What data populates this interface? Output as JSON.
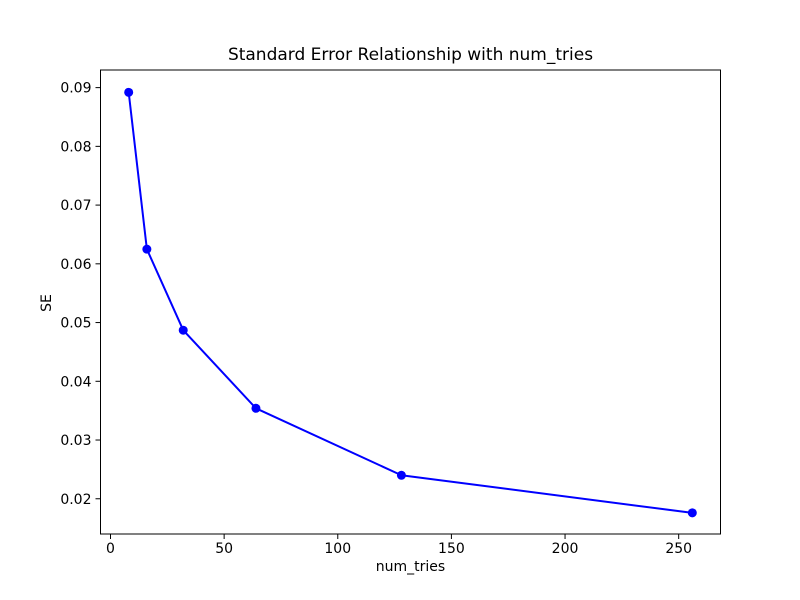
{
  "chart_data": {
    "type": "line",
    "title": "Standard Error Relationship with num_tries",
    "xlabel": "num_tries",
    "ylabel": "SE",
    "x": [
      8,
      16,
      32,
      64,
      128,
      256
    ],
    "y": [
      0.0892,
      0.0625,
      0.0487,
      0.0354,
      0.024,
      0.0176
    ],
    "xlim": [
      -4.4,
      268.4
    ],
    "ylim": [
      0.014,
      0.093
    ],
    "xticks": [
      0,
      50,
      100,
      150,
      200,
      250
    ],
    "yticks": [
      0.02,
      0.03,
      0.04,
      0.05,
      0.06,
      0.07,
      0.08,
      0.09
    ],
    "y_tick_decimals": 2,
    "line_color": "#0000ff",
    "marker": "circle",
    "marker_radius": 4.5,
    "line_width": 2,
    "grid": false,
    "legend": "none",
    "frame_color": "#000000"
  }
}
